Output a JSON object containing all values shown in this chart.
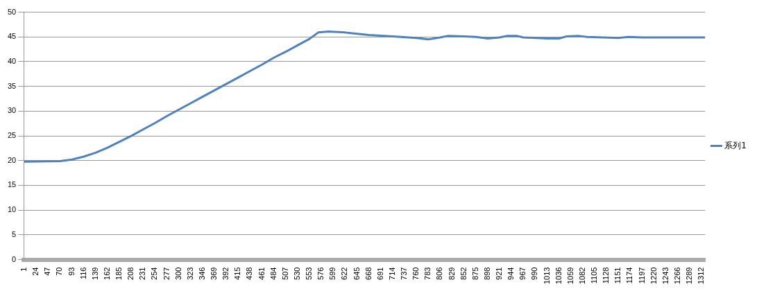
{
  "chart_data": {
    "type": "line",
    "grid": "y",
    "legend": "right",
    "marker": "none",
    "line_style": "solid",
    "xlim": [
      0,
      1319
    ],
    "xticks": [
      1,
      24,
      47,
      70,
      93,
      116,
      139,
      162,
      185,
      208,
      231,
      254,
      277,
      300,
      323,
      346,
      369,
      392,
      415,
      438,
      461,
      484,
      507,
      530,
      553,
      576,
      599,
      622,
      645,
      668,
      691,
      714,
      737,
      760,
      783,
      806,
      829,
      852,
      875,
      898,
      921,
      944,
      967,
      990,
      1013,
      1036,
      1059,
      1082,
      1105,
      1128,
      1151,
      1174,
      1197,
      1220,
      1243,
      1266,
      1289,
      1312
    ],
    "ylim": [
      0,
      50
    ],
    "yticks": [
      0,
      5,
      10,
      15,
      20,
      25,
      30,
      35,
      40,
      45,
      50
    ],
    "series": [
      {
        "name": "系列1",
        "color": "#4f81bd",
        "x": [
          1,
          70,
          93,
          116,
          139,
          162,
          185,
          208,
          231,
          254,
          277,
          300,
          323,
          346,
          369,
          392,
          415,
          438,
          461,
          484,
          507,
          530,
          553,
          570,
          590,
          622,
          668,
          714,
          760,
          783,
          806,
          820,
          852,
          875,
          898,
          921,
          935,
          955,
          967,
          1013,
          1036,
          1050,
          1075,
          1090,
          1151,
          1170,
          1197,
          1312,
          1319
        ],
        "values": [
          19.8,
          19.9,
          20.2,
          20.8,
          21.6,
          22.6,
          23.8,
          25.0,
          26.3,
          27.6,
          29.0,
          30.3,
          31.6,
          32.9,
          34.2,
          35.5,
          36.8,
          38.1,
          39.4,
          40.8,
          42.0,
          43.3,
          44.6,
          45.9,
          46.1,
          45.9,
          45.4,
          45.1,
          44.8,
          44.5,
          44.9,
          45.2,
          45.1,
          45.0,
          44.7,
          44.9,
          45.2,
          45.2,
          44.9,
          44.7,
          44.7,
          45.1,
          45.2,
          45.0,
          44.8,
          45.0,
          44.9,
          44.9,
          44.9
        ]
      }
    ]
  }
}
